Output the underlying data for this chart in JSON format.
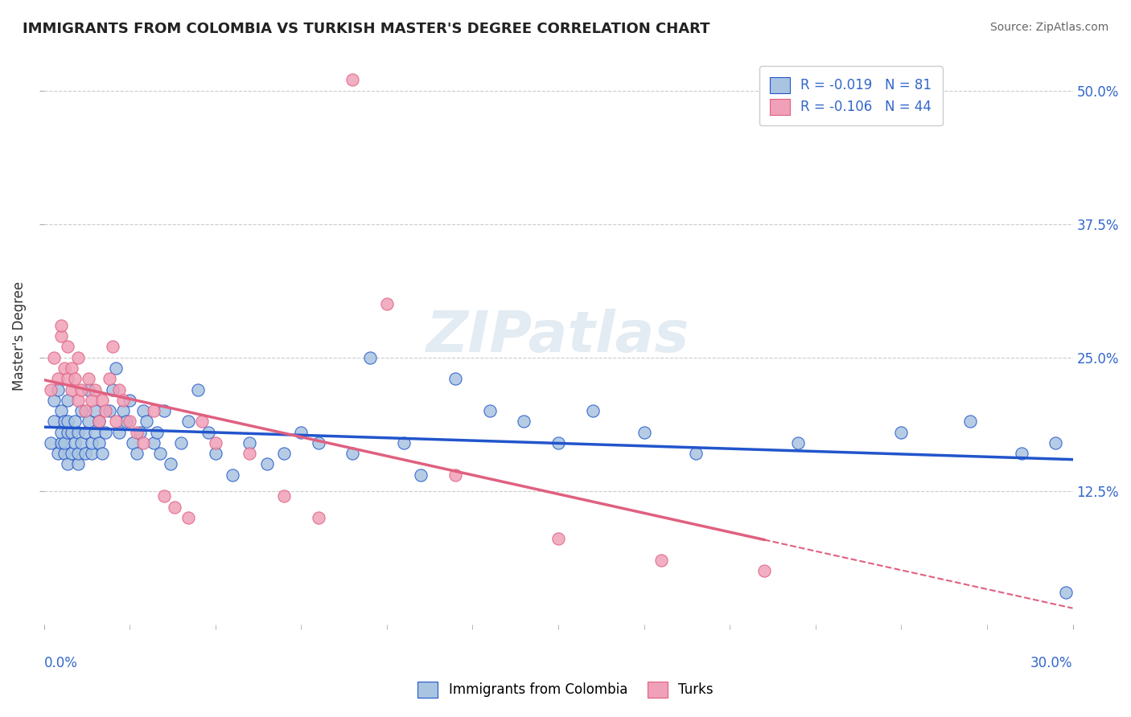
{
  "title": "IMMIGRANTS FROM COLOMBIA VS TURKISH MASTER'S DEGREE CORRELATION CHART",
  "source": "Source: ZipAtlas.com",
  "ylabel": "Master's Degree",
  "right_yticks": [
    "50.0%",
    "37.5%",
    "25.0%",
    "12.5%"
  ],
  "right_ytick_vals": [
    0.5,
    0.375,
    0.25,
    0.125
  ],
  "xmin": 0.0,
  "xmax": 0.3,
  "ymin": 0.0,
  "ymax": 0.54,
  "R_blue": -0.019,
  "N_blue": 81,
  "R_pink": -0.106,
  "N_pink": 44,
  "legend_label_blue": "Immigrants from Colombia",
  "legend_label_pink": "Turks",
  "color_blue": "#a8c4e0",
  "color_pink": "#f0a0b8",
  "line_color_blue": "#2255cc",
  "line_color_pink": "#e06080",
  "watermark": "ZIPatlas",
  "blue_scatter_x": [
    0.002,
    0.003,
    0.003,
    0.004,
    0.004,
    0.005,
    0.005,
    0.005,
    0.006,
    0.006,
    0.006,
    0.007,
    0.007,
    0.007,
    0.007,
    0.008,
    0.008,
    0.009,
    0.009,
    0.01,
    0.01,
    0.01,
    0.011,
    0.011,
    0.012,
    0.012,
    0.013,
    0.013,
    0.014,
    0.014,
    0.015,
    0.015,
    0.016,
    0.016,
    0.017,
    0.018,
    0.019,
    0.02,
    0.021,
    0.022,
    0.023,
    0.024,
    0.025,
    0.026,
    0.027,
    0.028,
    0.029,
    0.03,
    0.032,
    0.033,
    0.034,
    0.035,
    0.037,
    0.04,
    0.042,
    0.045,
    0.048,
    0.05,
    0.055,
    0.06,
    0.065,
    0.07,
    0.075,
    0.08,
    0.09,
    0.095,
    0.105,
    0.11,
    0.12,
    0.13,
    0.14,
    0.15,
    0.16,
    0.175,
    0.19,
    0.22,
    0.25,
    0.27,
    0.285,
    0.295,
    0.298
  ],
  "blue_scatter_y": [
    0.17,
    0.19,
    0.21,
    0.16,
    0.22,
    0.17,
    0.18,
    0.2,
    0.16,
    0.17,
    0.19,
    0.15,
    0.18,
    0.19,
    0.21,
    0.16,
    0.18,
    0.17,
    0.19,
    0.15,
    0.16,
    0.18,
    0.17,
    0.2,
    0.16,
    0.18,
    0.19,
    0.22,
    0.16,
    0.17,
    0.18,
    0.2,
    0.17,
    0.19,
    0.16,
    0.18,
    0.2,
    0.22,
    0.24,
    0.18,
    0.2,
    0.19,
    0.21,
    0.17,
    0.16,
    0.18,
    0.2,
    0.19,
    0.17,
    0.18,
    0.16,
    0.2,
    0.15,
    0.17,
    0.19,
    0.22,
    0.18,
    0.16,
    0.14,
    0.17,
    0.15,
    0.16,
    0.18,
    0.17,
    0.16,
    0.25,
    0.17,
    0.14,
    0.23,
    0.2,
    0.19,
    0.17,
    0.2,
    0.18,
    0.16,
    0.17,
    0.18,
    0.19,
    0.16,
    0.17,
    0.03
  ],
  "pink_scatter_x": [
    0.002,
    0.003,
    0.004,
    0.005,
    0.005,
    0.006,
    0.007,
    0.007,
    0.008,
    0.008,
    0.009,
    0.01,
    0.01,
    0.011,
    0.012,
    0.013,
    0.014,
    0.015,
    0.016,
    0.017,
    0.018,
    0.019,
    0.02,
    0.021,
    0.022,
    0.023,
    0.025,
    0.027,
    0.029,
    0.032,
    0.035,
    0.038,
    0.042,
    0.046,
    0.05,
    0.06,
    0.07,
    0.08,
    0.09,
    0.1,
    0.12,
    0.15,
    0.18,
    0.21
  ],
  "pink_scatter_y": [
    0.22,
    0.25,
    0.23,
    0.27,
    0.28,
    0.24,
    0.23,
    0.26,
    0.22,
    0.24,
    0.23,
    0.21,
    0.25,
    0.22,
    0.2,
    0.23,
    0.21,
    0.22,
    0.19,
    0.21,
    0.2,
    0.23,
    0.26,
    0.19,
    0.22,
    0.21,
    0.19,
    0.18,
    0.17,
    0.2,
    0.12,
    0.11,
    0.1,
    0.19,
    0.17,
    0.16,
    0.12,
    0.1,
    0.51,
    0.3,
    0.14,
    0.08,
    0.06,
    0.05
  ]
}
